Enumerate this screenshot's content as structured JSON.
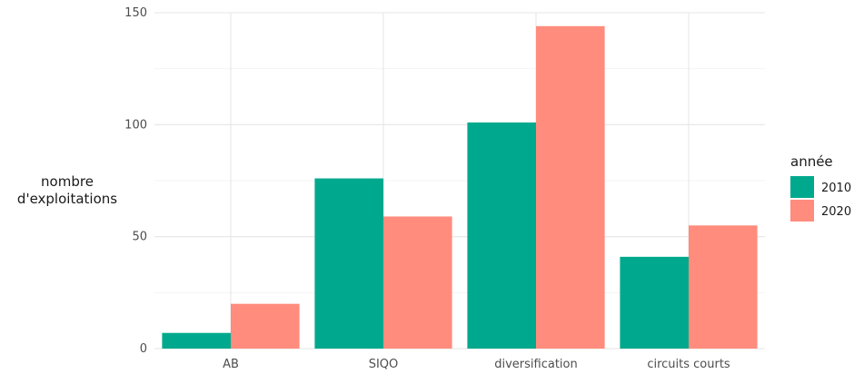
{
  "chart_data": {
    "type": "bar",
    "title": "",
    "categories": [
      "AB",
      "SIQO",
      "diversification",
      "circuits courts"
    ],
    "series": [
      {
        "name": "2010",
        "color": "#00a98d",
        "values": [
          7,
          76,
          101,
          41
        ]
      },
      {
        "name": "2020",
        "color": "#ff8c7d",
        "values": [
          20,
          59,
          144,
          55
        ]
      }
    ],
    "xlabel": "",
    "ylabel": [
      "nombre",
      "d'exploitations"
    ],
    "ylim": [
      0,
      150
    ],
    "yticks": [
      0,
      50,
      100,
      150
    ],
    "grid": true,
    "legend": {
      "title": "année",
      "placement": "right"
    }
  }
}
